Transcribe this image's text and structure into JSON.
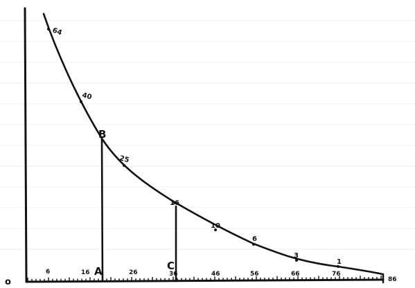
{
  "origin_label": "o",
  "point_labels": {
    "B": "B",
    "C": "C",
    "A": "A"
  },
  "curve_value_labels": [
    "64",
    "40",
    "25",
    "16",
    "10",
    "6",
    "3",
    "1"
  ],
  "x_axis_labels": [
    "6",
    "16",
    "26",
    "36",
    "46",
    "56",
    "66",
    "76",
    "86"
  ],
  "colors": {
    "ink": "#111111",
    "grid": "#eef0f3",
    "paper": "#ffffff"
  }
}
